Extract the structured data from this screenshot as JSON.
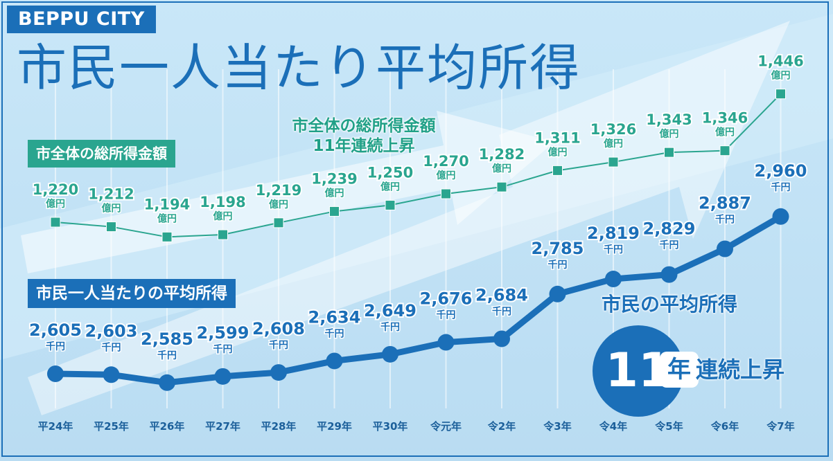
{
  "header": {
    "city": "BEPPU CITY",
    "title": "市民一人当たり平均所得"
  },
  "chart_data": {
    "type": "line",
    "x": [
      "平24年",
      "平25年",
      "平26年",
      "平27年",
      "平28年",
      "平29年",
      "平30年",
      "令元年",
      "令2年",
      "令3年",
      "令4年",
      "令5年",
      "令6年",
      "令7年"
    ],
    "series": [
      {
        "name": "市全体の総所得金額",
        "unit": "億円",
        "color": "#2aa58f",
        "values": [
          1220,
          1212,
          1194,
          1198,
          1219,
          1239,
          1250,
          1270,
          1282,
          1311,
          1326,
          1343,
          1346,
          1446
        ],
        "labels": [
          "1,220",
          "1,212",
          "1,194",
          "1,198",
          "1,219",
          "1,239",
          "1,250",
          "1,270",
          "1,282",
          "1,311",
          "1,326",
          "1,343",
          "1,346",
          "1,446"
        ]
      },
      {
        "name": "市民一人当たりの平均所得",
        "unit": "千円",
        "color": "#1b6fb8",
        "values": [
          2605,
          2603,
          2585,
          2599,
          2608,
          2634,
          2649,
          2676,
          2684,
          2785,
          2819,
          2829,
          2887,
          2960
        ],
        "labels": [
          "2,605",
          "2,603",
          "2,585",
          "2,599",
          "2,608",
          "2,634",
          "2,649",
          "2,676",
          "2,684",
          "2,785",
          "2,819",
          "2,829",
          "2,887",
          "2,960"
        ]
      }
    ]
  },
  "annotations": {
    "total_headline_line1": "市全体の総所得金額",
    "total_headline_line2": "11年連続上昇",
    "avg_headline": "市民の平均所得",
    "badge_number": "11",
    "badge_unit": "年",
    "badge_rest": "連続上昇"
  }
}
